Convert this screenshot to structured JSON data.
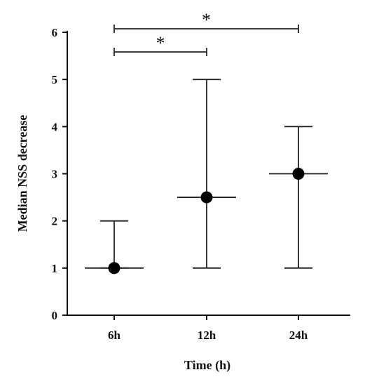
{
  "chart_data": {
    "type": "scatter",
    "title": "",
    "xlabel": "Time  (h)",
    "ylabel": "Median NSS decrease",
    "categories": [
      "6h",
      "12h",
      "24h"
    ],
    "series": [
      {
        "median": [
          1,
          2.5,
          3
        ],
        "lower": [
          1,
          1,
          1
        ],
        "upper": [
          2,
          5,
          4
        ]
      }
    ],
    "ylim": [
      0,
      6
    ],
    "yticks": [
      "0",
      "1",
      "2",
      "3",
      "4",
      "5",
      "6"
    ],
    "significance": [
      {
        "from": "6h",
        "to": "24h",
        "label": "*"
      },
      {
        "from": "6h",
        "to": "12h",
        "label": "*"
      }
    ],
    "grid": false,
    "legend": "none",
    "colors": {
      "marker": "#000000",
      "line": "#222222"
    }
  }
}
